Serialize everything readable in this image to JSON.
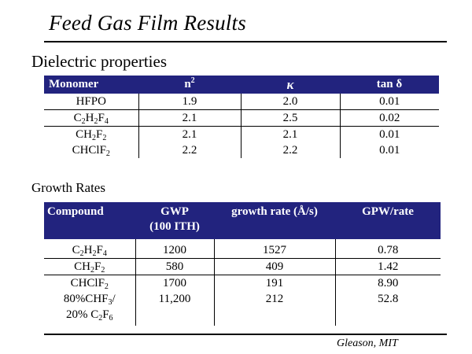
{
  "title": "Feed Gas Film Results",
  "dielectric": {
    "heading": "Dielectric properties",
    "headers": [
      "Monomer",
      "n",
      "2",
      "κ",
      "tan",
      "δ"
    ],
    "rows": [
      {
        "mono": [
          "HFPO"
        ],
        "n2": "1.9",
        "kappa": "2.0",
        "tan": "0.01"
      },
      {
        "mono": [
          "C",
          "2",
          "H",
          "2",
          "F",
          "4"
        ],
        "n2": "2.1",
        "kappa": "2.5",
        "tan": "0.02"
      },
      {
        "mono": [
          "CH",
          "2",
          "F",
          "2"
        ],
        "n2": "2.1",
        "kappa": "2.1",
        "tan": "0.01"
      },
      {
        "mono": [
          "CHClF",
          "2"
        ],
        "n2": "2.2",
        "kappa": "2.2",
        "tan": "0.01"
      }
    ]
  },
  "growth": {
    "heading": "Growth Rates",
    "headers": [
      "Compound",
      "GWP",
      "(100 ITH)",
      "growth rate (Å/s)",
      "GPW/rate"
    ],
    "rows": [
      {
        "c": [
          "C",
          "2",
          "H",
          "2",
          "F",
          "4"
        ],
        "gwp": "1200",
        "rate": "1527",
        "ratio": "0.78"
      },
      {
        "c": [
          "CH",
          "2",
          "F",
          "2"
        ],
        "gwp": "580",
        "rate": "409",
        "ratio": "1.42"
      },
      {
        "c": [
          "CHClF",
          "2"
        ],
        "gwp": "1700",
        "rate": "191",
        "ratio": "8.90"
      },
      {
        "c": [
          "80%CHF",
          "3",
          "/"
        ],
        "c2": [
          "20% C",
          "2",
          "F",
          "6"
        ],
        "gwp": "11,200",
        "rate": "212",
        "ratio": "52.8"
      }
    ]
  },
  "author": "Gleason, MIT"
}
